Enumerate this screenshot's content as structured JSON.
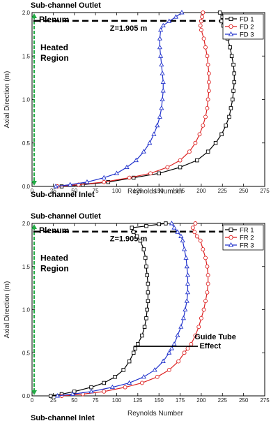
{
  "chart_data": [
    {
      "type": "line",
      "xlabel": "Reynolds Number",
      "ylabel": "Axial Direction (m)",
      "xlim": [
        0,
        275
      ],
      "ylim": [
        0,
        2.0
      ],
      "xticks": [
        "0",
        "25",
        "50",
        "75",
        "100",
        "125",
        "150",
        "175",
        "200",
        "225",
        "250",
        "275"
      ],
      "yticks": [
        "0.0",
        "0.5",
        "1.0",
        "1.5",
        "2.0"
      ],
      "legend_position": "top-right",
      "annotations": {
        "top": "Sub-channel Outlet",
        "bottom": "Sub-channel Inlet",
        "plenum": "Plenum",
        "heated": [
          "Heated",
          "Region"
        ],
        "z_line": "Z=1.905 m",
        "z_value": 1.905
      },
      "series": [
        {
          "name": "FD 1",
          "color": "#000000",
          "marker": "square",
          "points": [
            [
              35,
              0.0
            ],
            [
              60,
              0.02
            ],
            [
              90,
              0.05
            ],
            [
              120,
              0.1
            ],
            [
              150,
              0.15
            ],
            [
              175,
              0.22
            ],
            [
              195,
              0.3
            ],
            [
              208,
              0.4
            ],
            [
              217,
              0.5
            ],
            [
              224,
              0.6
            ],
            [
              229,
              0.7
            ],
            [
              233,
              0.8
            ],
            [
              235,
              0.9
            ],
            [
              237,
              1.0
            ],
            [
              238,
              1.1
            ],
            [
              239,
              1.2
            ],
            [
              239,
              1.3
            ],
            [
              238,
              1.4
            ],
            [
              236,
              1.5
            ],
            [
              234,
              1.6
            ],
            [
              231,
              1.7
            ],
            [
              228,
              1.8
            ],
            [
              226,
              1.85
            ],
            [
              224,
              1.9
            ],
            [
              225,
              1.95
            ],
            [
              222,
              2.0
            ]
          ]
        },
        {
          "name": "FD 2",
          "color": "#dd2222",
          "marker": "circle",
          "points": [
            [
              30,
              0.0
            ],
            [
              55,
              0.02
            ],
            [
              85,
              0.05
            ],
            [
              115,
              0.1
            ],
            [
              140,
              0.15
            ],
            [
              160,
              0.22
            ],
            [
              175,
              0.3
            ],
            [
              186,
              0.4
            ],
            [
              193,
              0.5
            ],
            [
              198,
              0.6
            ],
            [
              202,
              0.7
            ],
            [
              205,
              0.8
            ],
            [
              207,
              0.9
            ],
            [
              208,
              1.0
            ],
            [
              209,
              1.1
            ],
            [
              209,
              1.2
            ],
            [
              209,
              1.3
            ],
            [
              208,
              1.4
            ],
            [
              207,
              1.5
            ],
            [
              205,
              1.6
            ],
            [
              203,
              1.7
            ],
            [
              200,
              1.8
            ],
            [
              199,
              1.85
            ],
            [
              200,
              1.9
            ],
            [
              201,
              1.95
            ],
            [
              202,
              2.0
            ]
          ]
        },
        {
          "name": "FD 3",
          "color": "#2233cc",
          "marker": "triangle",
          "points": [
            [
              28,
              0.0
            ],
            [
              45,
              0.02
            ],
            [
              65,
              0.05
            ],
            [
              85,
              0.1
            ],
            [
              100,
              0.15
            ],
            [
              112,
              0.22
            ],
            [
              123,
              0.3
            ],
            [
              132,
              0.4
            ],
            [
              139,
              0.5
            ],
            [
              144,
              0.6
            ],
            [
              148,
              0.7
            ],
            [
              151,
              0.8
            ],
            [
              153,
              0.9
            ],
            [
              154,
              1.0
            ],
            [
              155,
              1.1
            ],
            [
              155,
              1.2
            ],
            [
              154,
              1.3
            ],
            [
              153,
              1.4
            ],
            [
              152,
              1.5
            ],
            [
              151,
              1.6
            ],
            [
              151,
              1.7
            ],
            [
              152,
              1.8
            ],
            [
              155,
              1.85
            ],
            [
              162,
              1.9
            ],
            [
              170,
              1.95
            ],
            [
              177,
              2.0
            ]
          ]
        }
      ]
    },
    {
      "type": "line",
      "xlabel": "Reynolds Number",
      "ylabel": "Axial Direction (m)",
      "xlim": [
        0,
        275
      ],
      "ylim": [
        0,
        2.0
      ],
      "xticks": [
        "0",
        "25",
        "50",
        "75",
        "100",
        "125",
        "150",
        "175",
        "200",
        "225",
        "250",
        "275"
      ],
      "yticks": [
        "0.0",
        "0.5",
        "1.0",
        "1.5",
        "2.0"
      ],
      "legend_position": "top-right",
      "annotations": {
        "top": "Sub-channel Outlet",
        "bottom": "Sub-channel Inlet",
        "plenum": "Plenum",
        "heated": [
          "Heated",
          "Region"
        ],
        "z_line": "Z=1.905 m",
        "z_value": 1.905,
        "guide": [
          "Guide Tube",
          "Effect"
        ],
        "guide_y": 0.575
      },
      "series": [
        {
          "name": "FR 1",
          "color": "#000000",
          "marker": "square",
          "points": [
            [
              22,
              0.0
            ],
            [
              35,
              0.02
            ],
            [
              50,
              0.05
            ],
            [
              70,
              0.1
            ],
            [
              85,
              0.15
            ],
            [
              98,
              0.22
            ],
            [
              108,
              0.3
            ],
            [
              115,
              0.4
            ],
            [
              120,
              0.5
            ],
            [
              122,
              0.55
            ],
            [
              125,
              0.6
            ],
            [
              130,
              0.7
            ],
            [
              133,
              0.8
            ],
            [
              135,
              0.9
            ],
            [
              136,
              1.0
            ],
            [
              137,
              1.1
            ],
            [
              137,
              1.2
            ],
            [
              137,
              1.3
            ],
            [
              136,
              1.4
            ],
            [
              135,
              1.5
            ],
            [
              134,
              1.6
            ],
            [
              132,
              1.7
            ],
            [
              128,
              1.8
            ],
            [
              124,
              1.85
            ],
            [
              120,
              1.9
            ],
            [
              118,
              1.95
            ],
            [
              135,
              1.97
            ],
            [
              150,
              1.99
            ],
            [
              158,
              2.0
            ]
          ]
        },
        {
          "name": "FR 2",
          "color": "#dd2222",
          "marker": "circle",
          "points": [
            [
              35,
              0.0
            ],
            [
              60,
              0.02
            ],
            [
              85,
              0.05
            ],
            [
              110,
              0.1
            ],
            [
              130,
              0.15
            ],
            [
              148,
              0.22
            ],
            [
              162,
              0.3
            ],
            [
              173,
              0.4
            ],
            [
              180,
              0.5
            ],
            [
              184,
              0.55
            ],
            [
              188,
              0.6
            ],
            [
              193,
              0.7
            ],
            [
              197,
              0.8
            ],
            [
              200,
              0.9
            ],
            [
              203,
              1.0
            ],
            [
              205,
              1.1
            ],
            [
              207,
              1.2
            ],
            [
              208,
              1.3
            ],
            [
              208,
              1.4
            ],
            [
              207,
              1.5
            ],
            [
              205,
              1.6
            ],
            [
              202,
              1.7
            ],
            [
              199,
              1.8
            ],
            [
              195,
              1.85
            ],
            [
              192,
              1.9
            ],
            [
              190,
              1.95
            ],
            [
              193,
              2.0
            ]
          ]
        },
        {
          "name": "FR 3",
          "color": "#2233cc",
          "marker": "triangle",
          "points": [
            [
              30,
              0.0
            ],
            [
              48,
              0.02
            ],
            [
              70,
              0.05
            ],
            [
              95,
              0.1
            ],
            [
              115,
              0.15
            ],
            [
              132,
              0.22
            ],
            [
              145,
              0.3
            ],
            [
              155,
              0.4
            ],
            [
              162,
              0.5
            ],
            [
              165,
              0.55
            ],
            [
              168,
              0.6
            ],
            [
              172,
              0.7
            ],
            [
              176,
              0.8
            ],
            [
              179,
              0.9
            ],
            [
              181,
              1.0
            ],
            [
              183,
              1.1
            ],
            [
              184,
              1.2
            ],
            [
              184,
              1.3
            ],
            [
              184,
              1.4
            ],
            [
              183,
              1.5
            ],
            [
              182,
              1.6
            ],
            [
              180,
              1.7
            ],
            [
              178,
              1.8
            ],
            [
              176,
              1.85
            ],
            [
              172,
              1.9
            ],
            [
              168,
              1.95
            ],
            [
              165,
              2.0
            ]
          ]
        }
      ]
    }
  ]
}
